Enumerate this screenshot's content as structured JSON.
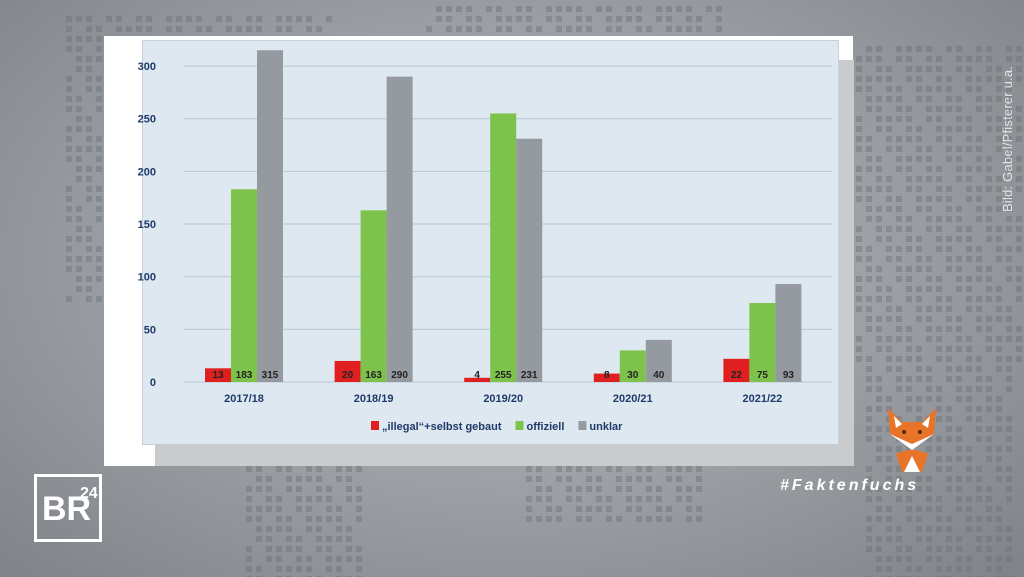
{
  "chart_data": {
    "type": "bar",
    "categories": [
      "2017/18",
      "2018/19",
      "2019/20",
      "2020/21",
      "2021/22"
    ],
    "series": [
      {
        "name": "„illegal“+selbst gebaut",
        "color": "#e02020",
        "values": [
          13,
          20,
          4,
          8,
          22
        ]
      },
      {
        "name": "offiziell",
        "color": "#7dc24b",
        "values": [
          183,
          163,
          255,
          30,
          75
        ]
      },
      {
        "name": "unklar",
        "color": "#9599a0",
        "values": [
          315,
          290,
          231,
          40,
          93
        ]
      }
    ],
    "yticks": [
      "0",
      "50",
      "100",
      "150",
      "200",
      "250",
      "300"
    ],
    "ylim": [
      0,
      320
    ],
    "grid": true,
    "legend_position": "bottom"
  },
  "credit": "Bild: Gabel/Pfisterer u.a.",
  "brand": {
    "logo_text": "BR",
    "logo_superscript": "24",
    "hashtag": "#Faktenfuchs",
    "icon": "fox-icon"
  }
}
